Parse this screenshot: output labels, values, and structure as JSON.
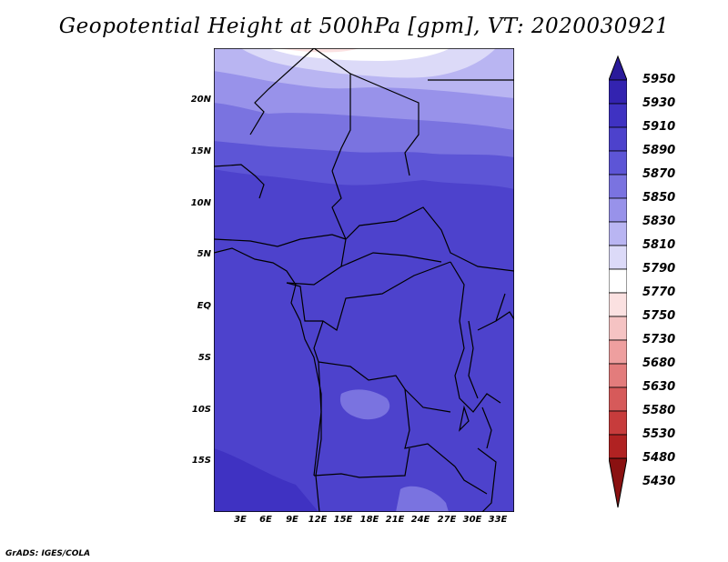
{
  "title": "Geopotential Height at 500hPa [gpm], VT: 2020030921",
  "footer": "GrADS: IGES/COLA",
  "map": {
    "y_ticks": [
      "20N",
      "15N",
      "10N",
      "5N",
      "EQ",
      "5S",
      "10S",
      "15S"
    ],
    "x_ticks": [
      "3E",
      "6E",
      "9E",
      "12E",
      "15E",
      "18E",
      "21E",
      "24E",
      "27E",
      "30E",
      "33E"
    ]
  },
  "colorbar": {
    "levels": [
      "5950",
      "5930",
      "5910",
      "5890",
      "5870",
      "5850",
      "5830",
      "5810",
      "5790",
      "5770",
      "5750",
      "5730",
      "5680",
      "5630",
      "5580",
      "5530",
      "5480",
      "5430"
    ],
    "colors": [
      "#2a1a9a",
      "#3323b0",
      "#3f32c2",
      "#4d42cc",
      "#5d55d6",
      "#7a73e0",
      "#9892ea",
      "#b9b5f2",
      "#dcdaf8",
      "#ffffff",
      "#fbe1e1",
      "#f5c3c3",
      "#ee9f9f",
      "#e37c7c",
      "#d65a5a",
      "#c73c3c",
      "#b02222",
      "#8a1111"
    ]
  }
}
